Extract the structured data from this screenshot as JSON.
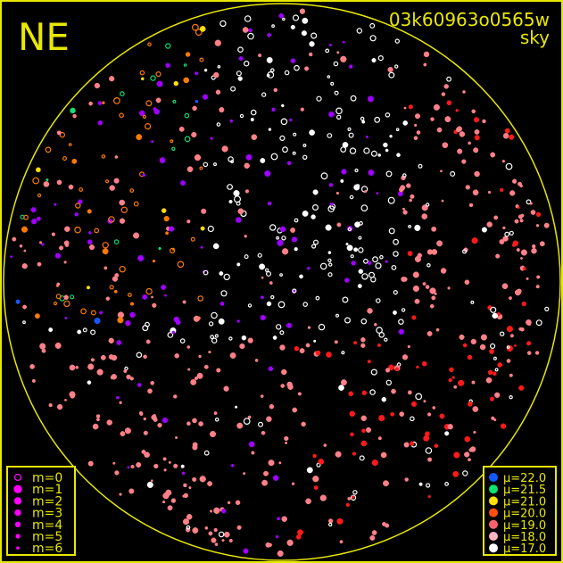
{
  "header": {
    "direction": "NE",
    "image_id": "03k60963o0565w",
    "image_type": "sky"
  },
  "colors": {
    "frame": "#e8e800",
    "text": "#e8e800",
    "magnitude_marker": "#ff00ff"
  },
  "magnitude_legend": [
    {
      "label": "m=0"
    },
    {
      "label": "m=1"
    },
    {
      "label": "m=2"
    },
    {
      "label": "m=3"
    },
    {
      "label": "m=4"
    },
    {
      "label": "m=5"
    },
    {
      "label": "m=6"
    }
  ],
  "brightness_legend": [
    {
      "label": "μ=22.0",
      "color": "#1458ff"
    },
    {
      "label": "μ=21.5",
      "color": "#10e070"
    },
    {
      "label": "μ=21.0",
      "color": "#ffe000"
    },
    {
      "label": "μ=20.0",
      "color": "#ff5010"
    },
    {
      "label": "μ=19.0",
      "color": "#ff6070"
    },
    {
      "label": "μ=18.0",
      "color": "#ffb4c4"
    },
    {
      "label": "μ=17.0",
      "color": "#ffffff"
    }
  ]
}
